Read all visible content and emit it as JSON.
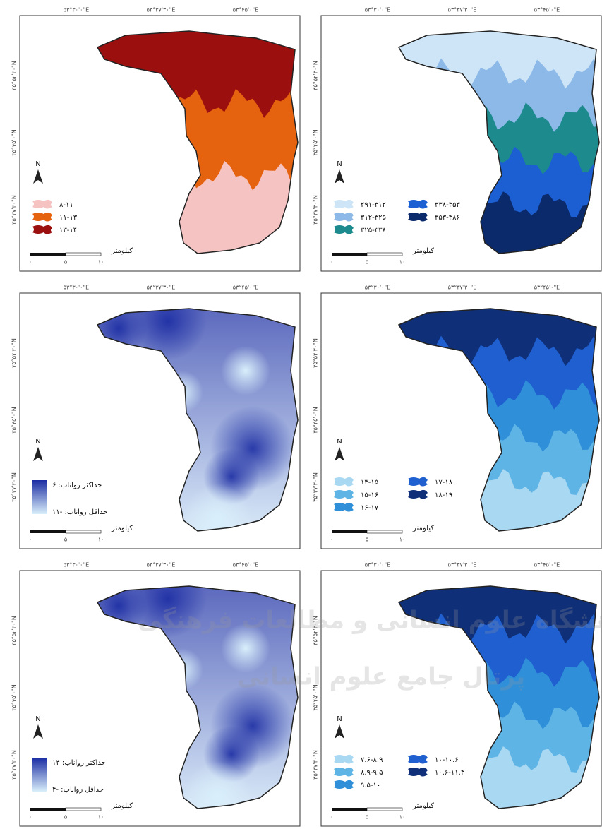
{
  "watermark": [
    "پژوهشگاه علوم انسانی و مطالعات فرهنگی",
    "پرتال جامع علوم انسانی"
  ],
  "panels": [
    {
      "x_labels": [
        "۵۳°۳۰'۰\"E",
        "۵۳°۳۷'۳۰\"E",
        "۵۳°۴۵'۰\"E"
      ],
      "y_labels": [
        "۳۵°۵۲'۳۰\"N",
        "۳۵°۴۵'۰\"N",
        "۳۵°۳۷'۳۰\"N"
      ],
      "north": "N",
      "legend": {
        "type": "classes",
        "items": [
          {
            "label": "۸-۱۱",
            "color": "#f6c3c3"
          },
          {
            "label": "۱۱-۱۳",
            "color": "#e5620f"
          },
          {
            "label": "۱۳-۱۴",
            "color": "#9c0f0f"
          }
        ]
      },
      "scale": {
        "unit": "کیلومتر",
        "labels": [
          "۰",
          "۵",
          "۱۰"
        ]
      }
    },
    {
      "x_labels": [
        "۵۳°۳۰'۰\"E",
        "۵۳°۳۷'۳۰\"E",
        "۵۳°۴۵'۰\"E"
      ],
      "y_labels": [
        "۳۵°۵۲'۳۰\"N",
        "۳۵°۴۵'۰\"N",
        "۳۵°۳۷'۳۰\"N"
      ],
      "north": "N",
      "legend": {
        "type": "classes",
        "items": [
          {
            "label": "۲۹۱-۳۱۲",
            "color": "#cde5f6"
          },
          {
            "label": "۳۱۲-۳۲۵",
            "color": "#8db9e8"
          },
          {
            "label": "۳۲۵-۳۳۸",
            "color": "#1d8a8d"
          },
          {
            "label": "۳۳۸-۳۵۳",
            "color": "#1c5fd2"
          },
          {
            "label": "۳۵۳-۳۸۶",
            "color": "#0b2a6c"
          }
        ]
      },
      "scale": {
        "unit": "کیلومتر",
        "labels": [
          "۰",
          "۵",
          "۱۰"
        ]
      }
    },
    {
      "x_labels": [
        "۵۳°۳۰'۰\"E",
        "۵۳°۳۷'۳۰\"E",
        "۵۳°۴۵'۰\"E"
      ],
      "y_labels": [
        "۳۵°۵۲'۳۰\"N",
        "۳۵°۴۵'۰\"N",
        "۳۵°۳۷'۳۰\"N"
      ],
      "north": "N",
      "legend": {
        "type": "gradient",
        "max": {
          "label": "حداکثر رواناب: ۶",
          "color": "#1b2ca3"
        },
        "min": {
          "label": "حداقل رواناب: -۱۱",
          "color": "#d9effb"
        }
      },
      "scale": {
        "unit": "کیلومتر",
        "labels": [
          "۰",
          "۵",
          "۱۰"
        ]
      }
    },
    {
      "x_labels": [
        "۵۳°۳۰'۰\"E",
        "۵۳°۳۷'۳۰\"E",
        "۵۳°۴۵'۰\"E"
      ],
      "y_labels": [
        "۳۵°۵۲'۳۰\"N",
        "۳۵°۴۵'۰\"N",
        "۳۵°۳۷'۳۰\"N"
      ],
      "north": "N",
      "legend": {
        "type": "classes",
        "items": [
          {
            "label": "۱۳-۱۵",
            "color": "#a9d8f2"
          },
          {
            "label": "۱۵-۱۶",
            "color": "#5fb4e6"
          },
          {
            "label": "۱۶-۱۷",
            "color": "#2f8fd8"
          },
          {
            "label": "۱۷-۱۸",
            "color": "#1f5fd0"
          },
          {
            "label": "۱۸-۱۹",
            "color": "#0f2f78"
          }
        ]
      },
      "scale": {
        "unit": "کیلومتر",
        "labels": [
          "۰",
          "۵",
          "۱۰"
        ]
      }
    },
    {
      "x_labels": [
        "۵۳°۳۰'۰\"E",
        "۵۳°۳۷'۳۰\"E",
        "۵۳°۴۵'۰\"E"
      ],
      "y_labels": [
        "۳۵°۵۲'۳۰\"N",
        "۳۵°۴۵'۰\"N",
        "۳۵°۳۷'۳۰\"N"
      ],
      "north": "N",
      "legend": {
        "type": "gradient",
        "max": {
          "label": "حداکثر رواناب: ۱۴",
          "color": "#1b2ca3"
        },
        "min": {
          "label": "حداقل رواناب: -۴",
          "color": "#d9effb"
        }
      },
      "scale": {
        "unit": "کیلومتر",
        "labels": [
          "۰",
          "۵",
          "۱۰"
        ]
      }
    },
    {
      "x_labels": [
        "۵۳°۳۰'۰\"E",
        "۵۳°۳۷'۳۰\"E",
        "۵۳°۴۵'۰\"E"
      ],
      "y_labels": [
        "۳۵°۵۲'۳۰\"N",
        "۳۵°۴۵'۰\"N",
        "۳۵°۳۷'۳۰\"N"
      ],
      "north": "N",
      "legend": {
        "type": "classes",
        "items": [
          {
            "label": "۷.۶-۸.۹",
            "color": "#a9d8f2"
          },
          {
            "label": "۸.۹-۹.۵",
            "color": "#5fb4e6"
          },
          {
            "label": "۹.۵-۱۰",
            "color": "#2f8fd8"
          },
          {
            "label": "۱۰-۱۰.۶",
            "color": "#1f5fd0"
          },
          {
            "label": "۱۰.۶-۱۱.۴",
            "color": "#0f2f78"
          }
        ]
      },
      "scale": {
        "unit": "کیلومتر",
        "labels": [
          "۰",
          "۵",
          "۱۰"
        ]
      }
    }
  ]
}
